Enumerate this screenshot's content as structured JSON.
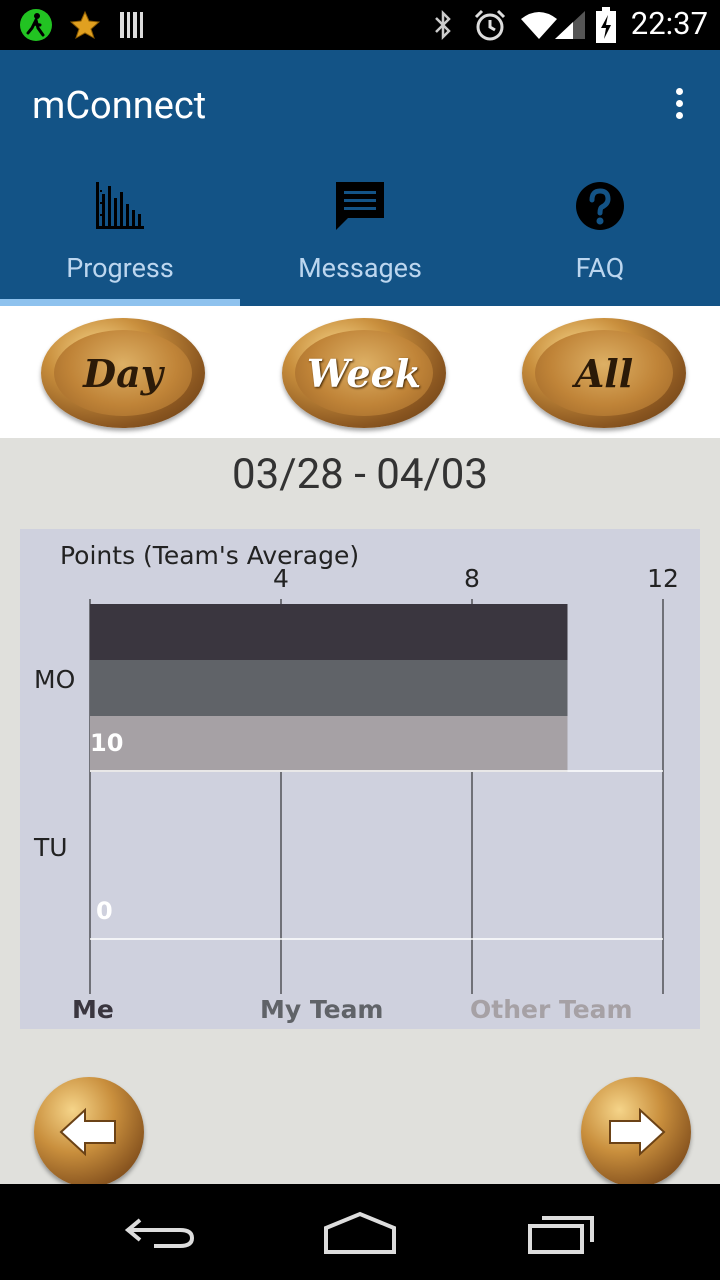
{
  "status_bar": {
    "time": "22:37",
    "icons": [
      "runner-app-icon",
      "star-icon",
      "barcode-icon",
      "bluetooth-icon",
      "alarm-icon",
      "wifi-icon",
      "signal-icon",
      "battery-charging-icon"
    ]
  },
  "app": {
    "title": "mConnect",
    "overflow_icon": "more-vert-icon"
  },
  "tabs": [
    {
      "label": "Progress",
      "icon": "bar-chart-icon",
      "selected": true
    },
    {
      "label": "Messages",
      "icon": "message-icon",
      "selected": false
    },
    {
      "label": "FAQ",
      "icon": "help-circle-icon",
      "selected": false
    }
  ],
  "range_buttons": [
    {
      "label": "Day",
      "text_color": "#2b1a08"
    },
    {
      "label": "Week",
      "text_color": "#ffffff"
    },
    {
      "label": "All",
      "text_color": "#2b1a08"
    }
  ],
  "date_range": "03/28 - 04/03",
  "chart_data": {
    "type": "bar",
    "orientation": "horizontal",
    "title": "Points (Team's Average)",
    "categories": [
      "MO",
      "TU"
    ],
    "series": [
      {
        "name": "Me",
        "values": [
          10,
          0
        ],
        "color": "#3a363f"
      },
      {
        "name": "My Team",
        "values": [
          10,
          0
        ],
        "color": "#606368"
      },
      {
        "name": "Other Team",
        "values": [
          10,
          0
        ],
        "color": "#a6a1a5"
      }
    ],
    "data_labels": [
      "10",
      "0"
    ],
    "xlim": [
      0,
      12
    ],
    "xticks": [
      4,
      8,
      12
    ],
    "grid": true,
    "legend_position": "bottom"
  },
  "colors": {
    "appbar": "#135386",
    "tab_label": "#bcd6ef",
    "tab_indicator": "#8ec2ee",
    "chart_background": "#cfd1de",
    "content_background": "#e0e0dc"
  },
  "nav_buttons": {
    "previous_icon": "arrow-left-icon",
    "next_icon": "arrow-right-icon"
  },
  "system_nav": {
    "icons": [
      "back-icon",
      "home-icon",
      "recents-icon"
    ]
  }
}
